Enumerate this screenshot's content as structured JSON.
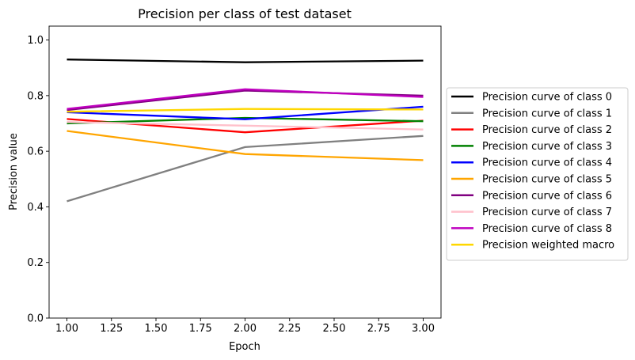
{
  "chart_data": {
    "type": "line",
    "title": "Precision per class of test dataset",
    "xlabel": "Epoch",
    "ylabel": "Precision value",
    "xlim": [
      0.9,
      3.1
    ],
    "ylim": [
      0.0,
      1.05
    ],
    "xticks": [
      1.0,
      1.25,
      1.5,
      1.75,
      2.0,
      2.25,
      2.5,
      2.75,
      3.0
    ],
    "xtick_labels": [
      "1.00",
      "1.25",
      "1.50",
      "1.75",
      "2.00",
      "2.25",
      "2.50",
      "2.75",
      "3.00"
    ],
    "yticks": [
      0.0,
      0.2,
      0.4,
      0.6,
      0.8,
      1.0
    ],
    "ytick_labels": [
      "0.0",
      "0.2",
      "0.4",
      "0.6",
      "0.8",
      "1.0"
    ],
    "grid": false,
    "legend_position": "outside-right",
    "x": [
      1,
      2,
      3
    ],
    "series": [
      {
        "name": "Precision curve of class 0",
        "color": "#000000",
        "values": [
          0.93,
          0.92,
          0.926
        ]
      },
      {
        "name": "Precision curve of class 1",
        "color": "#808080",
        "values": [
          0.42,
          0.615,
          0.655
        ]
      },
      {
        "name": "Precision curve of class 2",
        "color": "#ff0000",
        "values": [
          0.716,
          0.668,
          0.71
        ]
      },
      {
        "name": "Precision curve of class 3",
        "color": "#008000",
        "values": [
          0.7,
          0.72,
          0.708
        ]
      },
      {
        "name": "Precision curve of class 4",
        "color": "#0000ff",
        "values": [
          0.74,
          0.715,
          0.76
        ]
      },
      {
        "name": "Precision curve of class 5",
        "color": "#ffa500",
        "values": [
          0.673,
          0.59,
          0.568
        ]
      },
      {
        "name": "Precision curve of class 6",
        "color": "#800080",
        "values": [
          0.748,
          0.818,
          0.8
        ]
      },
      {
        "name": "Precision curve of class 7",
        "color": "#ffc0cb",
        "values": [
          0.705,
          0.692,
          0.678
        ]
      },
      {
        "name": "Precision curve of class 8",
        "color": "#bf00bf",
        "values": [
          0.752,
          0.823,
          0.795
        ]
      },
      {
        "name": "Precision weighted macro",
        "color": "#ffd700",
        "values": [
          0.742,
          0.752,
          0.75
        ]
      }
    ]
  }
}
